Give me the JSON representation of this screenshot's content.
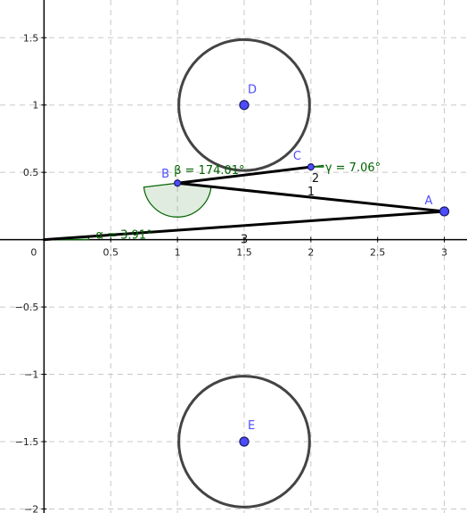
{
  "view": {
    "x_range": [
      -0.33,
      3.17
    ],
    "y_range": [
      -2.03,
      1.78
    ],
    "grid": true,
    "grid_style": "dashed",
    "x_ticks": [
      {
        "v": 0.5,
        "label": "0.5"
      },
      {
        "v": 1,
        "label": "1"
      },
      {
        "v": 1.5,
        "label": "1.5"
      },
      {
        "v": 2,
        "label": "2"
      },
      {
        "v": 2.5,
        "label": "2.5"
      },
      {
        "v": 3,
        "label": "3"
      }
    ],
    "y_ticks": [
      {
        "v": 1.5,
        "label": "1.5"
      },
      {
        "v": 1,
        "label": "1"
      },
      {
        "v": 0.5,
        "label": "0.5"
      },
      {
        "v": -0.5,
        "label": "−0.5"
      },
      {
        "v": -1,
        "label": "−1"
      },
      {
        "v": -1.5,
        "label": "−1.5"
      },
      {
        "v": -2,
        "label": "−2"
      }
    ],
    "origin_label": "0"
  },
  "colors": {
    "axis": "#000000",
    "grid": "#c8c8c8",
    "segment": "#000000",
    "circle": "#444444",
    "point_fill": "#4d4dff",
    "point_stroke": "#1a1a66",
    "point_label": "#4d4dff",
    "angle": "#006400",
    "angle_fill": "#006400"
  },
  "points": [
    {
      "name": "A",
      "x": 3.0,
      "y": 0.21,
      "r": 5,
      "label": "A"
    },
    {
      "name": "B",
      "x": 1.0,
      "y": 0.42,
      "r": 3.5,
      "label": "B"
    },
    {
      "name": "C",
      "x": 2.0,
      "y": 0.54,
      "r": 3.5,
      "label": "C"
    },
    {
      "name": "D",
      "x": 1.5,
      "y": 1.0,
      "r": 5,
      "label": "D"
    },
    {
      "name": "E",
      "x": 1.5,
      "y": -1.5,
      "r": 5,
      "label": "E"
    }
  ],
  "segments": [
    {
      "id": "seg-origin-a",
      "from": [
        0,
        0
      ],
      "to": [
        3.0,
        0.21
      ],
      "label": "3"
    },
    {
      "id": "seg-a-b",
      "from": [
        3.0,
        0.21
      ],
      "to": [
        1.0,
        0.42
      ],
      "label": "1"
    },
    {
      "id": "seg-b-c",
      "from": [
        1.0,
        0.42
      ],
      "to": [
        2.0,
        0.54
      ],
      "label": "2"
    }
  ],
  "circles": [
    {
      "id": "circle-d",
      "cx": 1.5,
      "cy": 1.0,
      "r": 0.49
    },
    {
      "id": "circle-e",
      "cx": 1.5,
      "cy": -1.5,
      "r": 0.49
    }
  ],
  "angles": [
    {
      "id": "angle-beta",
      "label": "β = 174.01°"
    },
    {
      "id": "angle-gamma",
      "label": "γ = 7.06°"
    },
    {
      "id": "angle-alpha",
      "label": "α = 3.91°"
    }
  ]
}
